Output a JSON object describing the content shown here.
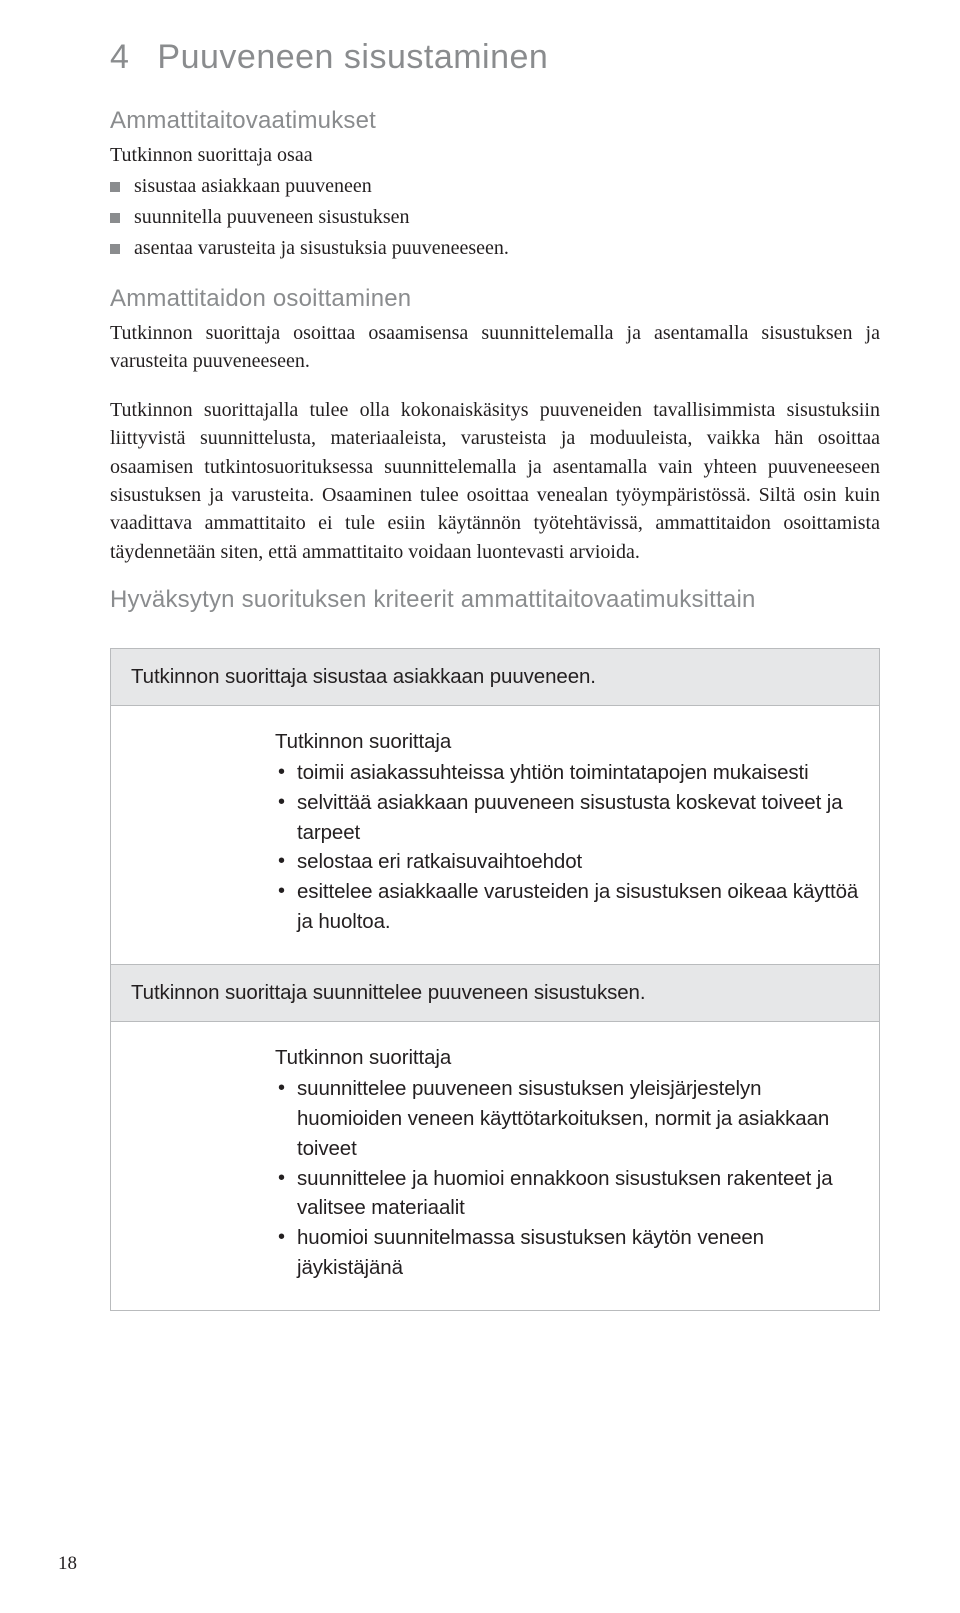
{
  "page_number": "18",
  "h1_num": "4",
  "h1_text": "Puuveneen sisustaminen",
  "h2_a": "Ammattitaitovaatimukset",
  "intro_a": "Tutkinnon suorittaja osaa",
  "bullets_a": [
    "sisustaa asiakkaan puuveneen",
    "suunnitella puuveneen sisustuksen",
    "asentaa varusteita ja sisustuksia puuveneeseen."
  ],
  "h2_b": "Ammattitaidon osoittaminen",
  "para_b1": "Tutkinnon suorittaja osoittaa osaamisensa suunnittelemalla ja asentamalla sisustuksen ja varusteita puuveneeseen.",
  "para_b2": "Tutkinnon suorittajalla tulee olla kokonaiskäsitys puuveneiden tavallisimmista sisustuksiin liittyvistä suunnittelusta, materiaaleista, varusteista ja moduuleista, vaikka hän osoittaa osaamisen tutkintosuorituksessa suunnittelemalla ja asentamalla vain yhteen puuveneeseen sisustuksen ja varusteita. Osaaminen tulee osoittaa venealan työympäristössä. Siltä osin kuin vaadittava ammattitaito ei tule esiin käytännön työtehtävissä, ammattitaidon osoittamista täydennetään siten, että ammattitaito voidaan luontevasti arvioida.",
  "h3": "Hyväksytyn suorituksen kriteerit ammattitaitovaatimuksittain",
  "box1_title": "Tutkinnon suorittaja sisustaa asiakkaan puuveneen.",
  "box1_lead": "Tutkinnon suorittaja",
  "box1_items": [
    "toimii asiakassuhteissa yhtiön toimintatapojen mukaisesti",
    "selvittää asiakkaan puuveneen sisustusta koskevat toiveet ja tarpeet",
    "selostaa eri ratkaisuvaihtoehdot",
    "esittelee asiakkaalle varusteiden ja sisustuksen oikeaa käyttöä ja huoltoa."
  ],
  "box2_title": "Tutkinnon suorittaja suunnittelee puuveneen sisustuksen.",
  "box2_lead": "Tutkinnon suorittaja",
  "box2_items": [
    {
      "t": "suunnittelee puuveneen sisustuksen yleisjärjestelyn huomioiden veneen käyttötarkoituksen, normit ja asiakkaan toiveet",
      "wrap": "koituksen, normit ja asiakkaan toiveet"
    },
    {
      "t": "suunnittelee ja huomioi ennakkoon sisustuksen rakenteet ja valitsee materiaalit"
    },
    {
      "t": "huomioi suunnitelmassa sisustuksen käytön veneen jäykistäjänä"
    }
  ]
}
